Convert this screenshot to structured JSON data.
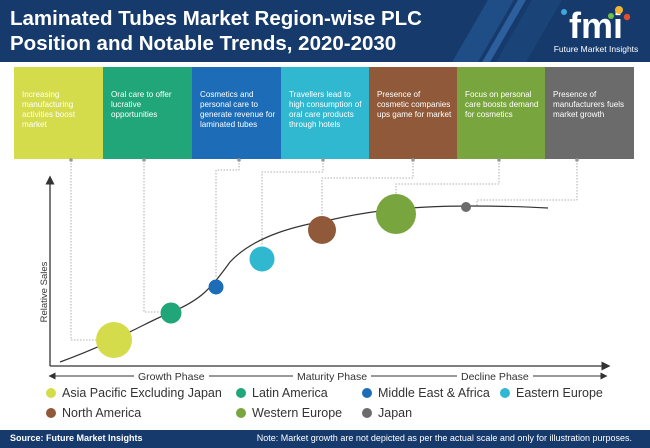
{
  "header": {
    "title": "Laminated Tubes Market Region-wise PLC Position and Notable Trends, 2020-2030"
  },
  "logo": {
    "mark": "fmi",
    "tagline": "Future Market Insights"
  },
  "trends": [
    {
      "text": "Increasing manufacturing activities boost market",
      "color": "#d5dc4b"
    },
    {
      "text": "Oral care to offer lucrative opportunities",
      "color": "#21a67a"
    },
    {
      "text": "Cosmetics and personal care to generate revenue for laminated tubes",
      "color": "#1c6cb7"
    },
    {
      "text": "Travellers lead to high consumption of oral care products through hotels",
      "color": "#30b8d0"
    },
    {
      "text": "Presence of cosmetic companies ups game for market",
      "color": "#905a3a"
    },
    {
      "text": "Focus on personal care boosts demand for cosmetics",
      "color": "#79a53e"
    },
    {
      "text": "Presence of manufacturers fuels market growth",
      "color": "#6b6b6b"
    }
  ],
  "axis": {
    "y_label": "Relative Sales"
  },
  "phases": [
    "Growth Phase",
    "Maturity Phase",
    "Decline Phase"
  ],
  "legend": [
    {
      "label": "Asia Pacific Excluding Japan",
      "color": "#d5dc4b"
    },
    {
      "label": "Latin America",
      "color": "#21a67a"
    },
    {
      "label": "Middle East & Africa",
      "color": "#1c6cb7"
    },
    {
      "label": "Eastern Europe",
      "color": "#30b8d0"
    },
    {
      "label": "North America",
      "color": "#905a3a"
    },
    {
      "label": "Western Europe",
      "color": "#79a53e"
    },
    {
      "label": "Japan",
      "color": "#6b6b6b"
    }
  ],
  "footer": {
    "source": "Source: Future Market Insights",
    "note": "Note: Market growth are not depicted as per the actual scale and only for illustration purposes."
  }
}
